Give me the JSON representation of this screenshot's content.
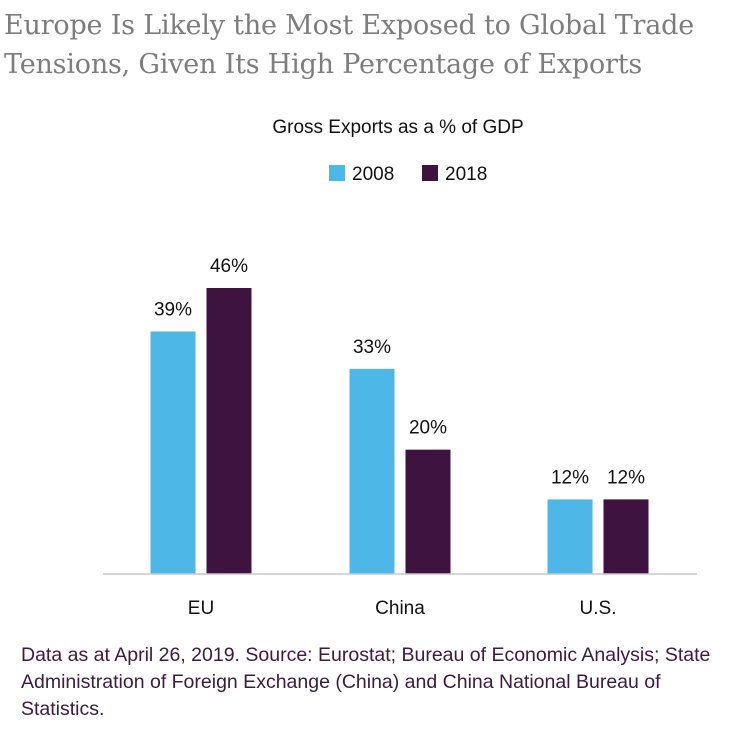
{
  "headline": {
    "line1": "Europe Is Likely the Most Exposed to Global Trade",
    "line2": "Tensions, Given Its High Percentage of Exports"
  },
  "colors": {
    "series_2008": "#4db8e8",
    "series_2018": "#3e1340",
    "axis": "#c8c8c8",
    "text": "#111111",
    "note": "#3d1a3f"
  },
  "chart_data": {
    "type": "bar",
    "title": "Gross Exports as a % of GDP",
    "categories": [
      "EU",
      "China",
      "U.S."
    ],
    "series": [
      {
        "name": "2008",
        "values": [
          39,
          33,
          12
        ],
        "labels": [
          "39%",
          "33%",
          "12%"
        ]
      },
      {
        "name": "2018",
        "values": [
          46,
          20,
          12
        ],
        "labels": [
          "46%",
          "20%",
          "12%"
        ]
      }
    ],
    "xlabel": "",
    "ylabel": "",
    "ylim": [
      0,
      46
    ],
    "grid": false,
    "legend": "top-center"
  },
  "source_note": "Data as at April 26, 2019. Source: Eurostat; Bureau of Economic Analysis; State Administration of Foreign Exchange (China) and China National Bureau of Statistics."
}
